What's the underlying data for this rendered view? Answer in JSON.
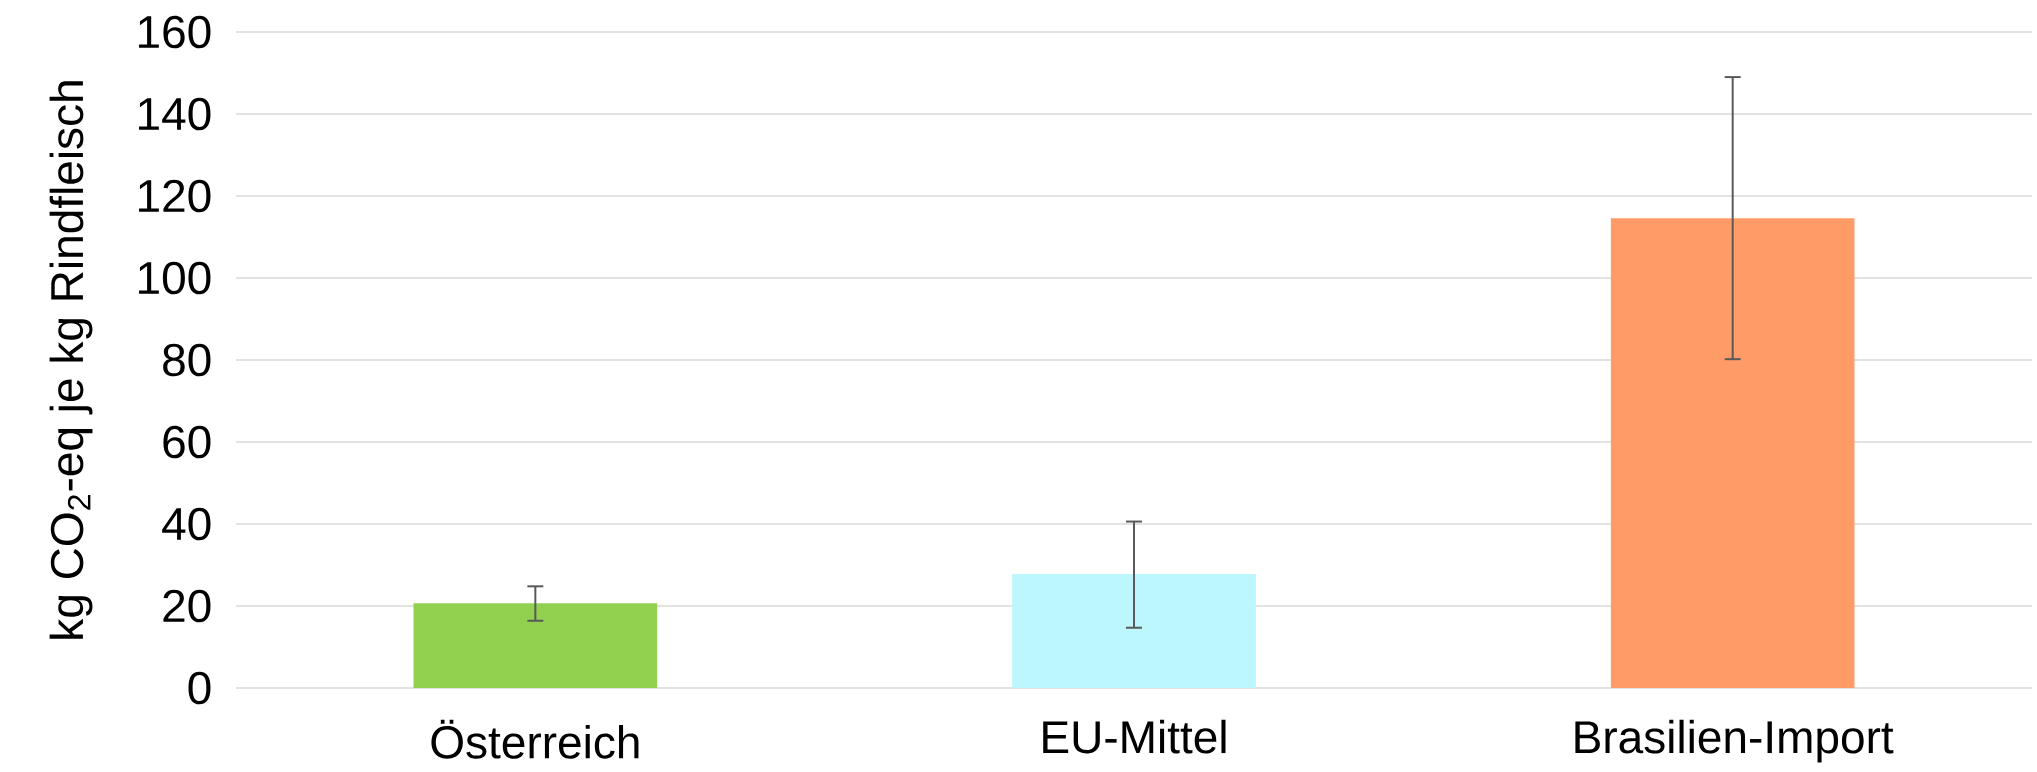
{
  "chart_data": {
    "type": "bar",
    "ylabel": "kg CO$_{2}$-eq je kg Rindfleisch",
    "categories": [
      "Österreich",
      "EU-Mittel",
      "Brasilien-Import"
    ],
    "values": [
      20.7,
      27.8,
      114.6
    ],
    "colors": [
      "#92d050",
      "#bbf7fc",
      "#ff9b67"
    ],
    "errors": [
      [
        16.4,
        24.8
      ],
      [
        14.7,
        40.6
      ],
      [
        80.2,
        149.0
      ]
    ],
    "ylim": [
      0,
      160
    ],
    "yticks": [
      0,
      20,
      40,
      60,
      80,
      100,
      120,
      140,
      160
    ],
    "grid": "y"
  }
}
